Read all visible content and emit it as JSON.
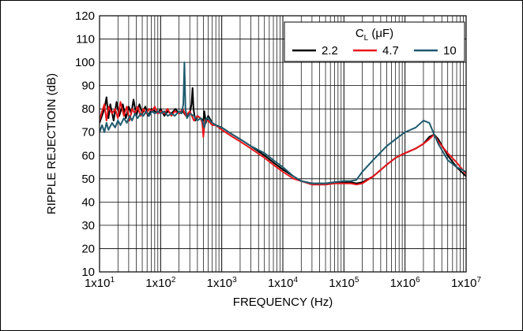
{
  "chart_data": {
    "type": "line",
    "xlabel": "FREQUENCY (Hz)",
    "ylabel": "RIPPLE REJECTIOIN (dB)",
    "x_scale": "log",
    "xlim": [
      10,
      10000000
    ],
    "ylim": [
      10,
      120
    ],
    "grid": true,
    "legend_title": {
      "main": "C",
      "sub": "L",
      "unit": " (μF)"
    },
    "legend_placement": "top-right",
    "x_ticks": [
      {
        "base": "1x10",
        "exp": "1"
      },
      {
        "base": "1x10",
        "exp": "2"
      },
      {
        "base": "1x10",
        "exp": "3"
      },
      {
        "base": "1x10",
        "exp": "4"
      },
      {
        "base": "1x10",
        "exp": "5"
      },
      {
        "base": "1x10",
        "exp": "6"
      },
      {
        "base": "1x10",
        "exp": "7"
      }
    ],
    "y_ticks": [
      "10",
      "20",
      "30",
      "40",
      "50",
      "60",
      "70",
      "80",
      "90",
      "100",
      "110",
      "120"
    ],
    "series": [
      {
        "name": "2.2",
        "color": "#000000",
        "points": [
          [
            10,
            74
          ],
          [
            12,
            80
          ],
          [
            13,
            85
          ],
          [
            14,
            76
          ],
          [
            15,
            82
          ],
          [
            17,
            75
          ],
          [
            19,
            83
          ],
          [
            21,
            77
          ],
          [
            24,
            82
          ],
          [
            27,
            76
          ],
          [
            30,
            81
          ],
          [
            33,
            78
          ],
          [
            36,
            84
          ],
          [
            40,
            77
          ],
          [
            45,
            82
          ],
          [
            50,
            78
          ],
          [
            56,
            81
          ],
          [
            63,
            77
          ],
          [
            71,
            80
          ],
          [
            80,
            79
          ],
          [
            90,
            78
          ],
          [
            100,
            80
          ],
          [
            115,
            77
          ],
          [
            130,
            79
          ],
          [
            150,
            78
          ],
          [
            175,
            80
          ],
          [
            200,
            78
          ],
          [
            230,
            79
          ],
          [
            260,
            77
          ],
          [
            300,
            78
          ],
          [
            320,
            82
          ],
          [
            333,
            89
          ],
          [
            345,
            80
          ],
          [
            370,
            75
          ],
          [
            400,
            77
          ],
          [
            450,
            76
          ],
          [
            500,
            75
          ],
          [
            520,
            79
          ],
          [
            550,
            74
          ],
          [
            600,
            77
          ],
          [
            700,
            74
          ],
          [
            800,
            73
          ],
          [
            1000,
            72
          ],
          [
            1500,
            69
          ],
          [
            2000,
            67
          ],
          [
            3000,
            64
          ],
          [
            5000,
            60
          ],
          [
            7000,
            57
          ],
          [
            10000,
            54
          ],
          [
            15000,
            51
          ],
          [
            20000,
            49
          ],
          [
            30000,
            48
          ],
          [
            50000,
            48
          ],
          [
            70000,
            48.5
          ],
          [
            100000,
            48.5
          ],
          [
            130000,
            48.5
          ],
          [
            160000,
            48
          ],
          [
            200000,
            48.5
          ],
          [
            300000,
            51
          ],
          [
            500000,
            56
          ],
          [
            700000,
            59
          ],
          [
            1000000,
            61
          ],
          [
            1500000,
            63
          ],
          [
            2000000,
            65
          ],
          [
            2500000,
            68
          ],
          [
            3000000,
            69
          ],
          [
            3500000,
            67
          ],
          [
            5000000,
            60
          ],
          [
            7000000,
            55
          ],
          [
            10000000,
            51
          ]
        ]
      },
      {
        "name": "4.7",
        "color": "#e8161b",
        "points": [
          [
            10,
            75
          ],
          [
            11,
            79
          ],
          [
            12,
            82
          ],
          [
            13,
            75
          ],
          [
            14,
            81
          ],
          [
            16,
            78
          ],
          [
            18,
            80
          ],
          [
            20,
            76
          ],
          [
            22,
            83
          ],
          [
            25,
            77
          ],
          [
            28,
            81
          ],
          [
            31,
            75
          ],
          [
            34,
            80
          ],
          [
            38,
            78
          ],
          [
            42,
            81
          ],
          [
            47,
            77
          ],
          [
            52,
            80
          ],
          [
            58,
            78
          ],
          [
            65,
            80
          ],
          [
            72,
            79
          ],
          [
            80,
            81
          ],
          [
            90,
            78
          ],
          [
            100,
            79
          ],
          [
            115,
            78
          ],
          [
            130,
            80
          ],
          [
            150,
            77
          ],
          [
            170,
            79
          ],
          [
            200,
            78
          ],
          [
            230,
            80
          ],
          [
            260,
            77
          ],
          [
            300,
            79
          ],
          [
            350,
            75
          ],
          [
            400,
            77
          ],
          [
            450,
            76
          ],
          [
            480,
            74
          ],
          [
            500,
            68
          ],
          [
            530,
            75
          ],
          [
            600,
            75
          ],
          [
            700,
            73
          ],
          [
            800,
            73
          ],
          [
            1000,
            71
          ],
          [
            1500,
            68
          ],
          [
            2000,
            66
          ],
          [
            3000,
            63
          ],
          [
            5000,
            59
          ],
          [
            7000,
            56
          ],
          [
            10000,
            53
          ],
          [
            15000,
            50
          ],
          [
            20000,
            49
          ],
          [
            30000,
            47.5
          ],
          [
            50000,
            47.5
          ],
          [
            70000,
            48
          ],
          [
            100000,
            48
          ],
          [
            130000,
            48
          ],
          [
            160000,
            47.5
          ],
          [
            200000,
            48
          ],
          [
            300000,
            51
          ],
          [
            500000,
            56
          ],
          [
            700000,
            59
          ],
          [
            1000000,
            61
          ],
          [
            1500000,
            63
          ],
          [
            2000000,
            65
          ],
          [
            2500000,
            67
          ],
          [
            3000000,
            69
          ],
          [
            3500000,
            66
          ],
          [
            5000000,
            61
          ],
          [
            7000000,
            57
          ],
          [
            10000000,
            52
          ]
        ]
      },
      {
        "name": "10",
        "color": "#1e5a6e",
        "points": [
          [
            10,
            70
          ],
          [
            11,
            73
          ],
          [
            12,
            70
          ],
          [
            13,
            74
          ],
          [
            14,
            71
          ],
          [
            16,
            74
          ],
          [
            18,
            72
          ],
          [
            20,
            75
          ],
          [
            22,
            73
          ],
          [
            25,
            76
          ],
          [
            28,
            74
          ],
          [
            31,
            77
          ],
          [
            34,
            75
          ],
          [
            38,
            78
          ],
          [
            42,
            76
          ],
          [
            47,
            78
          ],
          [
            52,
            77
          ],
          [
            58,
            79
          ],
          [
            65,
            77
          ],
          [
            72,
            79
          ],
          [
            80,
            78
          ],
          [
            90,
            79
          ],
          [
            100,
            78
          ],
          [
            115,
            79
          ],
          [
            130,
            77
          ],
          [
            150,
            78
          ],
          [
            170,
            77
          ],
          [
            200,
            79
          ],
          [
            220,
            78
          ],
          [
            235,
            82
          ],
          [
            245,
            100
          ],
          [
            255,
            80
          ],
          [
            270,
            76
          ],
          [
            300,
            78
          ],
          [
            350,
            77
          ],
          [
            400,
            75
          ],
          [
            450,
            76
          ],
          [
            480,
            75
          ],
          [
            520,
            72
          ],
          [
            560,
            76
          ],
          [
            600,
            76
          ],
          [
            700,
            74
          ],
          [
            800,
            73
          ],
          [
            1000,
            72
          ],
          [
            1500,
            69
          ],
          [
            2000,
            67
          ],
          [
            3000,
            64
          ],
          [
            5000,
            61
          ],
          [
            7000,
            58
          ],
          [
            10000,
            55
          ],
          [
            15000,
            51
          ],
          [
            20000,
            49
          ],
          [
            30000,
            48
          ],
          [
            50000,
            48
          ],
          [
            70000,
            48.5
          ],
          [
            100000,
            49
          ],
          [
            130000,
            49
          ],
          [
            160000,
            49.5
          ],
          [
            200000,
            53
          ],
          [
            300000,
            58
          ],
          [
            500000,
            64
          ],
          [
            700000,
            67
          ],
          [
            1000000,
            70
          ],
          [
            1500000,
            72
          ],
          [
            2000000,
            75
          ],
          [
            2500000,
            74
          ],
          [
            3000000,
            69
          ],
          [
            3500000,
            65
          ],
          [
            5000000,
            58
          ],
          [
            7000000,
            55
          ],
          [
            10000000,
            53
          ]
        ]
      }
    ]
  }
}
